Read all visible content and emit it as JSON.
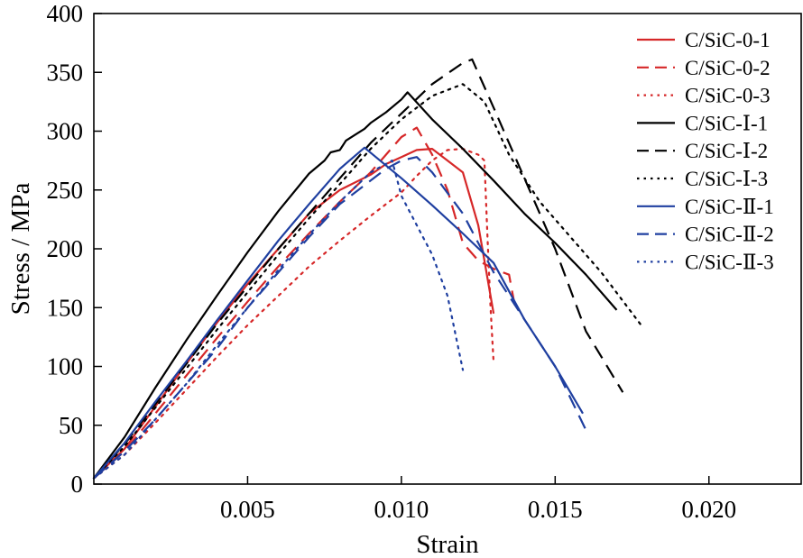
{
  "chart_data": {
    "type": "line",
    "xlabel": "Strain",
    "ylabel": "Stress / MPa",
    "xlim": [
      0,
      0.023
    ],
    "ylim": [
      0,
      400
    ],
    "xticks": [
      0.005,
      0.01,
      0.015,
      0.02
    ],
    "xtick_labels": [
      "0.005",
      "0.010",
      "0.015",
      "0.020"
    ],
    "yticks": [
      0,
      50,
      100,
      150,
      200,
      250,
      300,
      350,
      400
    ],
    "ytick_labels": [
      "0",
      "50",
      "100",
      "150",
      "200",
      "250",
      "300",
      "350",
      "400"
    ],
    "grid": false,
    "legend_position": "top-right",
    "series": [
      {
        "name": "C/SiC-0-1",
        "color": "#d62728",
        "dash": "solid",
        "points": [
          [
            0,
            5
          ],
          [
            0.001,
            30
          ],
          [
            0.002,
            66
          ],
          [
            0.003,
            102
          ],
          [
            0.004,
            137
          ],
          [
            0.005,
            170
          ],
          [
            0.006,
            200
          ],
          [
            0.007,
            230
          ],
          [
            0.008,
            250
          ],
          [
            0.009,
            263
          ],
          [
            0.0095,
            272
          ],
          [
            0.01,
            278
          ],
          [
            0.0105,
            284
          ],
          [
            0.011,
            285
          ],
          [
            0.0115,
            275
          ],
          [
            0.012,
            265
          ],
          [
            0.0125,
            220
          ],
          [
            0.013,
            145
          ]
        ]
      },
      {
        "name": "C/SiC-0-2",
        "color": "#d62728",
        "dash": "dashed",
        "points": [
          [
            0,
            5
          ],
          [
            0.001,
            28
          ],
          [
            0.002,
            60
          ],
          [
            0.003,
            92
          ],
          [
            0.004,
            124
          ],
          [
            0.005,
            155
          ],
          [
            0.006,
            185
          ],
          [
            0.007,
            213
          ],
          [
            0.008,
            240
          ],
          [
            0.009,
            265
          ],
          [
            0.0095,
            280
          ],
          [
            0.01,
            295
          ],
          [
            0.0105,
            303
          ],
          [
            0.011,
            280
          ],
          [
            0.0115,
            250
          ],
          [
            0.012,
            205
          ],
          [
            0.0125,
            190
          ],
          [
            0.013,
            183
          ],
          [
            0.0135,
            178
          ],
          [
            0.0137,
            150
          ]
        ]
      },
      {
        "name": "C/SiC-0-3",
        "color": "#d62728",
        "dash": "dotted",
        "points": [
          [
            0,
            5
          ],
          [
            0.001,
            25
          ],
          [
            0.002,
            52
          ],
          [
            0.003,
            80
          ],
          [
            0.004,
            108
          ],
          [
            0.005,
            135
          ],
          [
            0.006,
            160
          ],
          [
            0.007,
            185
          ],
          [
            0.008,
            207
          ],
          [
            0.009,
            228
          ],
          [
            0.01,
            248
          ],
          [
            0.0105,
            262
          ],
          [
            0.011,
            275
          ],
          [
            0.0115,
            284
          ],
          [
            0.012,
            285
          ],
          [
            0.0125,
            280
          ],
          [
            0.0127,
            275
          ],
          [
            0.0128,
            210
          ],
          [
            0.0129,
            150
          ],
          [
            0.013,
            103
          ]
        ]
      },
      {
        "name": "C/SiC-Ⅰ-1",
        "color": "#000000",
        "dash": "solid",
        "points": [
          [
            0,
            5
          ],
          [
            0.001,
            40
          ],
          [
            0.002,
            82
          ],
          [
            0.003,
            122
          ],
          [
            0.004,
            160
          ],
          [
            0.005,
            197
          ],
          [
            0.006,
            232
          ],
          [
            0.007,
            264
          ],
          [
            0.0075,
            275
          ],
          [
            0.0077,
            282
          ],
          [
            0.008,
            284
          ],
          [
            0.0082,
            292
          ],
          [
            0.0085,
            297
          ],
          [
            0.0088,
            302
          ],
          [
            0.009,
            307
          ],
          [
            0.0095,
            316
          ],
          [
            0.01,
            327
          ],
          [
            0.0102,
            333
          ],
          [
            0.011,
            310
          ],
          [
            0.012,
            285
          ],
          [
            0.013,
            258
          ],
          [
            0.014,
            230
          ],
          [
            0.015,
            205
          ],
          [
            0.016,
            178
          ],
          [
            0.017,
            148
          ]
        ]
      },
      {
        "name": "C/SiC-Ⅰ-2",
        "color": "#000000",
        "dash": "dashed",
        "points": [
          [
            0,
            5
          ],
          [
            0.001,
            34
          ],
          [
            0.002,
            68
          ],
          [
            0.003,
            102
          ],
          [
            0.004,
            136
          ],
          [
            0.005,
            168
          ],
          [
            0.006,
            200
          ],
          [
            0.007,
            230
          ],
          [
            0.008,
            260
          ],
          [
            0.009,
            290
          ],
          [
            0.01,
            315
          ],
          [
            0.011,
            340
          ],
          [
            0.012,
            358
          ],
          [
            0.0123,
            361
          ],
          [
            0.013,
            320
          ],
          [
            0.014,
            260
          ],
          [
            0.015,
            200
          ],
          [
            0.016,
            130
          ],
          [
            0.0172,
            78
          ]
        ]
      },
      {
        "name": "C/SiC-Ⅰ-3",
        "color": "#000000",
        "dash": "dotted",
        "points": [
          [
            0,
            5
          ],
          [
            0.001,
            32
          ],
          [
            0.002,
            65
          ],
          [
            0.003,
            98
          ],
          [
            0.004,
            131
          ],
          [
            0.005,
            163
          ],
          [
            0.006,
            195
          ],
          [
            0.007,
            226
          ],
          [
            0.008,
            255
          ],
          [
            0.009,
            285
          ],
          [
            0.01,
            310
          ],
          [
            0.011,
            330
          ],
          [
            0.012,
            340
          ],
          [
            0.0127,
            325
          ],
          [
            0.0135,
            280
          ],
          [
            0.0145,
            240
          ],
          [
            0.0155,
            210
          ],
          [
            0.0165,
            180
          ],
          [
            0.0178,
            135
          ]
        ]
      },
      {
        "name": "C/SiC-Ⅱ-1",
        "color": "#1f3fa0",
        "dash": "solid",
        "points": [
          [
            0,
            5
          ],
          [
            0.001,
            35
          ],
          [
            0.002,
            70
          ],
          [
            0.003,
            104
          ],
          [
            0.004,
            139
          ],
          [
            0.005,
            173
          ],
          [
            0.006,
            207
          ],
          [
            0.007,
            238
          ],
          [
            0.008,
            268
          ],
          [
            0.0088,
            286
          ],
          [
            0.01,
            260
          ],
          [
            0.011,
            237
          ],
          [
            0.012,
            213
          ],
          [
            0.013,
            188
          ],
          [
            0.014,
            140
          ],
          [
            0.015,
            100
          ],
          [
            0.0159,
            60
          ]
        ]
      },
      {
        "name": "C/SiC-Ⅱ-2",
        "color": "#1f3fa0",
        "dash": "dashed",
        "points": [
          [
            0,
            5
          ],
          [
            0.001,
            28
          ],
          [
            0.002,
            55
          ],
          [
            0.003,
            85
          ],
          [
            0.004,
            115
          ],
          [
            0.005,
            150
          ],
          [
            0.006,
            180
          ],
          [
            0.007,
            210
          ],
          [
            0.008,
            238
          ],
          [
            0.009,
            258
          ],
          [
            0.0095,
            268
          ],
          [
            0.01,
            275
          ],
          [
            0.0105,
            278
          ],
          [
            0.011,
            265
          ],
          [
            0.012,
            230
          ],
          [
            0.013,
            180
          ],
          [
            0.014,
            140
          ],
          [
            0.015,
            100
          ],
          [
            0.016,
            46
          ]
        ]
      },
      {
        "name": "C/SiC-Ⅱ-3",
        "color": "#1f3fa0",
        "dash": "dotted",
        "points": [
          [
            0,
            5
          ],
          [
            0.001,
            25
          ],
          [
            0.002,
            55
          ],
          [
            0.003,
            85
          ],
          [
            0.004,
            118
          ],
          [
            0.005,
            150
          ],
          [
            0.006,
            182
          ],
          [
            0.007,
            212
          ],
          [
            0.008,
            240
          ],
          [
            0.009,
            265
          ],
          [
            0.0097,
            275
          ],
          [
            0.01,
            245
          ],
          [
            0.011,
            195
          ],
          [
            0.0115,
            160
          ],
          [
            0.012,
            97
          ]
        ]
      }
    ]
  }
}
